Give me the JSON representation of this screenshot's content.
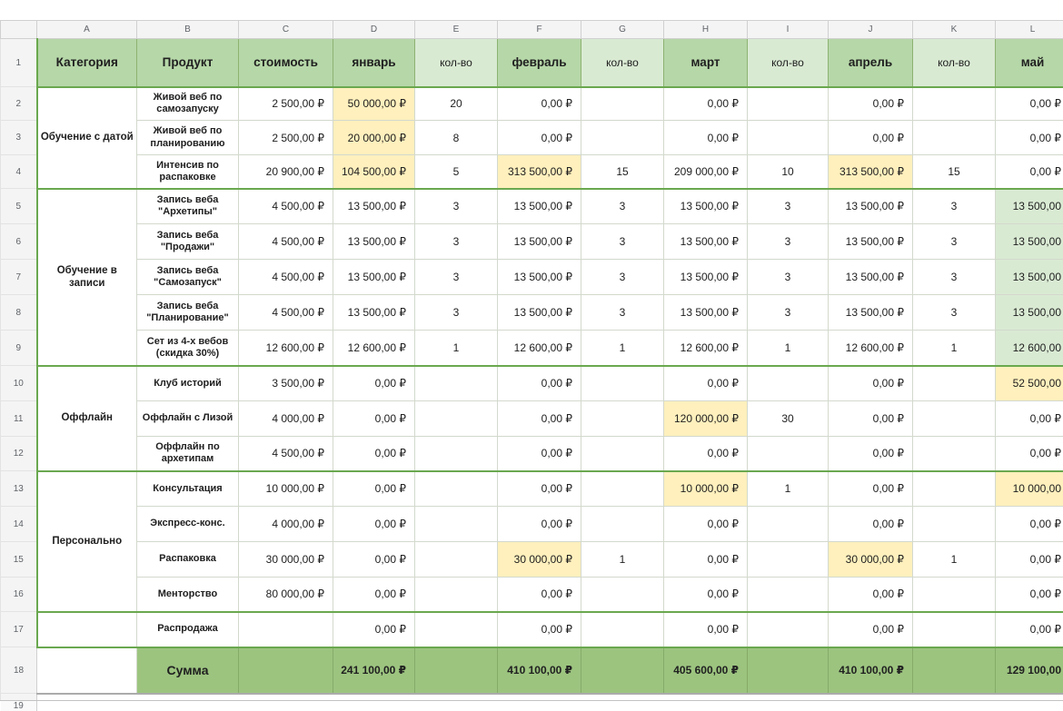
{
  "colors": {
    "border-green": "#6aa84f",
    "header-green": "#b6d7a8",
    "light-green": "#d9ead3",
    "sum-green": "#9cc47f",
    "highlight-yellow": "#fff0bd",
    "grid-line": "#d3d9cd",
    "gutter-bg": "#f4f4f4",
    "gutter-border": "#d0d0d0",
    "gutter-text": "#5f6368",
    "text": "#202020"
  },
  "sheet": {
    "column_letters": [
      "A",
      "B",
      "C",
      "D",
      "E",
      "F",
      "G",
      "H",
      "I",
      "J",
      "K",
      "L"
    ],
    "row_numbers": [
      "1",
      "2",
      "3",
      "4",
      "5",
      "6",
      "7",
      "8",
      "9",
      "10",
      "11",
      "12",
      "13",
      "14",
      "15",
      "16",
      "17",
      "18",
      "19"
    ],
    "header_cells": [
      {
        "label": "Категория",
        "bg": "h"
      },
      {
        "label": "Продукт",
        "bg": "h"
      },
      {
        "label": "стоимость",
        "bg": "h"
      },
      {
        "label": "январь",
        "bg": "h"
      },
      {
        "label": "кол-во",
        "bg": "l"
      },
      {
        "label": "февраль",
        "bg": "h"
      },
      {
        "label": "кол-во",
        "bg": "l"
      },
      {
        "label": "март",
        "bg": "h"
      },
      {
        "label": "кол-во",
        "bg": "l"
      },
      {
        "label": "апрель",
        "bg": "h"
      },
      {
        "label": "кол-во",
        "bg": "l"
      },
      {
        "label": "май",
        "bg": "h"
      }
    ],
    "blocks": [
      {
        "category": "Обучение с датой",
        "rows": [
          {
            "product": "Живой веб по самозапуску",
            "values": [
              "2 500,00 ₽",
              "50 000,00 ₽",
              "20",
              "0,00 ₽",
              "",
              "0,00 ₽",
              "",
              "0,00 ₽",
              "",
              "0,00 ₽"
            ],
            "styles": {
              "1": "y"
            }
          },
          {
            "product": "Живой веб по планированию",
            "values": [
              "2 500,00 ₽",
              "20 000,00 ₽",
              "8",
              "0,00 ₽",
              "",
              "0,00 ₽",
              "",
              "0,00 ₽",
              "",
              "0,00 ₽"
            ],
            "styles": {
              "1": "y"
            }
          },
          {
            "product": "Интенсив по распаковке",
            "values": [
              "20 900,00 ₽",
              "104 500,00 ₽",
              "5",
              "313 500,00 ₽",
              "15",
              "209 000,00 ₽",
              "10",
              "313 500,00 ₽",
              "15",
              "0,00 ₽"
            ],
            "styles": {
              "1": "y",
              "3": "y",
              "7": "y"
            }
          }
        ]
      },
      {
        "category": "Обучение в записи",
        "rows": [
          {
            "product": "Запись веба \"Архетипы\"",
            "values": [
              "4 500,00 ₽",
              "13 500,00 ₽",
              "3",
              "13 500,00 ₽",
              "3",
              "13 500,00 ₽",
              "3",
              "13 500,00 ₽",
              "3",
              "13 500,00"
            ],
            "styles": {
              "9": "g"
            }
          },
          {
            "product": "Запись веба \"Продажи\"",
            "values": [
              "4 500,00 ₽",
              "13 500,00 ₽",
              "3",
              "13 500,00 ₽",
              "3",
              "13 500,00 ₽",
              "3",
              "13 500,00 ₽",
              "3",
              "13 500,00"
            ],
            "styles": {
              "9": "g"
            }
          },
          {
            "product": "Запись веба \"Самозапуск\"",
            "values": [
              "4 500,00 ₽",
              "13 500,00 ₽",
              "3",
              "13 500,00 ₽",
              "3",
              "13 500,00 ₽",
              "3",
              "13 500,00 ₽",
              "3",
              "13 500,00"
            ],
            "styles": {
              "9": "g"
            }
          },
          {
            "product": "Запись веба \"Планирование\"",
            "values": [
              "4 500,00 ₽",
              "13 500,00 ₽",
              "3",
              "13 500,00 ₽",
              "3",
              "13 500,00 ₽",
              "3",
              "13 500,00 ₽",
              "3",
              "13 500,00"
            ],
            "styles": {
              "9": "g"
            }
          },
          {
            "product": "Сет из 4-х вебов (скидка 30%)",
            "values": [
              "12 600,00 ₽",
              "12 600,00 ₽",
              "1",
              "12 600,00 ₽",
              "1",
              "12 600,00 ₽",
              "1",
              "12 600,00 ₽",
              "1",
              "12 600,00"
            ],
            "styles": {
              "9": "g"
            }
          }
        ]
      },
      {
        "category": "Оффлайн",
        "rows": [
          {
            "product": "Клуб историй",
            "values": [
              "3 500,00 ₽",
              "0,00 ₽",
              "",
              "0,00 ₽",
              "",
              "0,00 ₽",
              "",
              "0,00 ₽",
              "",
              "52 500,00"
            ],
            "styles": {
              "9": "y"
            }
          },
          {
            "product": "Оффлайн с Лизой",
            "values": [
              "4 000,00 ₽",
              "0,00 ₽",
              "",
              "0,00 ₽",
              "",
              "120 000,00 ₽",
              "30",
              "0,00 ₽",
              "",
              "0,00 ₽"
            ],
            "styles": {
              "5": "y"
            }
          },
          {
            "product": "Оффлайн по архетипам",
            "values": [
              "4 500,00 ₽",
              "0,00 ₽",
              "",
              "0,00 ₽",
              "",
              "0,00 ₽",
              "",
              "0,00 ₽",
              "",
              "0,00 ₽"
            ],
            "styles": {}
          }
        ]
      },
      {
        "category": "Персонально",
        "rows": [
          {
            "product": "Консультация",
            "values": [
              "10 000,00 ₽",
              "0,00 ₽",
              "",
              "0,00 ₽",
              "",
              "10 000,00 ₽",
              "1",
              "0,00 ₽",
              "",
              "10 000,00"
            ],
            "styles": {
              "5": "y",
              "9": "y"
            }
          },
          {
            "product": "Экспресс-конс.",
            "values": [
              "4 000,00 ₽",
              "0,00 ₽",
              "",
              "0,00 ₽",
              "",
              "0,00 ₽",
              "",
              "0,00 ₽",
              "",
              "0,00 ₽"
            ],
            "styles": {}
          },
          {
            "product": "Распаковка",
            "values": [
              "30 000,00 ₽",
              "0,00 ₽",
              "",
              "30 000,00 ₽",
              "1",
              "0,00 ₽",
              "",
              "30 000,00 ₽",
              "1",
              "0,00 ₽"
            ],
            "styles": {
              "3": "y",
              "7": "y"
            }
          },
          {
            "product": "Менторство",
            "values": [
              "80 000,00 ₽",
              "0,00 ₽",
              "",
              "0,00 ₽",
              "",
              "0,00 ₽",
              "",
              "0,00 ₽",
              "",
              "0,00 ₽"
            ],
            "styles": {}
          }
        ]
      },
      {
        "category": "",
        "rows": [
          {
            "product": "Распродажа",
            "values": [
              "",
              "0,00 ₽",
              "",
              "0,00 ₽",
              "",
              "0,00 ₽",
              "",
              "0,00 ₽",
              "",
              "0,00 ₽"
            ],
            "styles": {}
          }
        ]
      }
    ],
    "sum_row": {
      "label": "Сумма",
      "values": [
        "",
        "241 100,00 ₽",
        "",
        "410 100,00 ₽",
        "",
        "405 600,00 ₽",
        "",
        "410 100,00 ₽",
        "",
        "129 100,00"
      ]
    }
  }
}
